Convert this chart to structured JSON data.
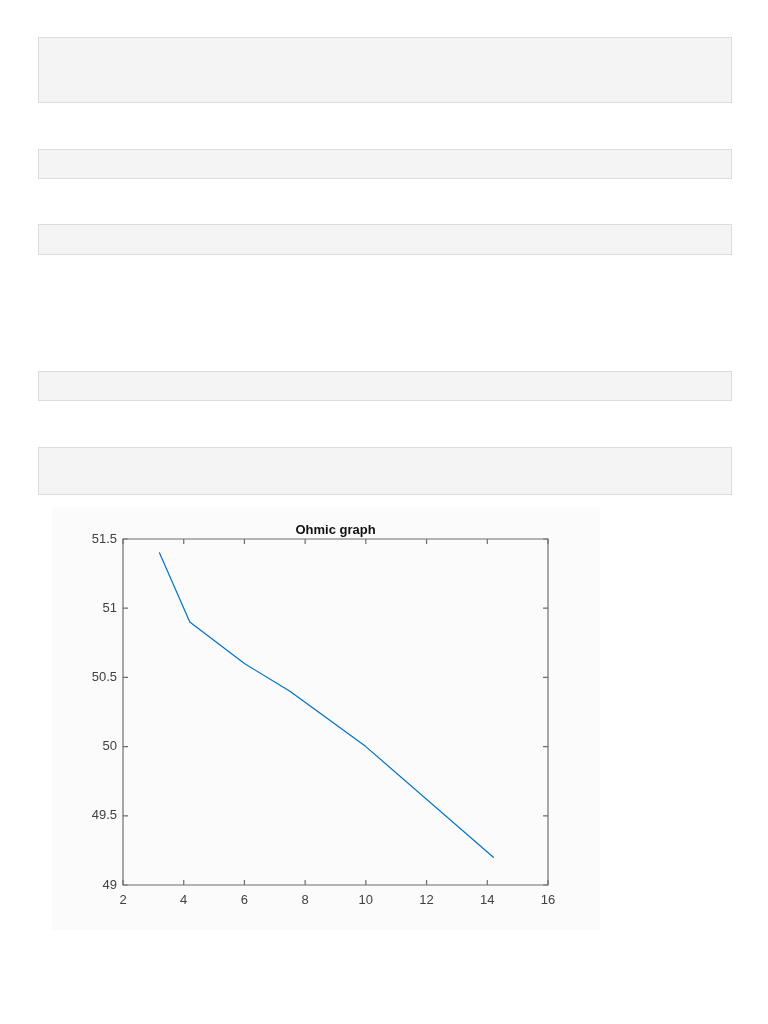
{
  "chart_data": {
    "type": "line",
    "title": "Ohmic graph",
    "x": [
      3.2,
      4.2,
      6,
      7.5,
      10,
      14.2
    ],
    "series": [
      {
        "color": "#0072bd",
        "values": [
          51.4,
          50.9,
          50.6,
          50.4,
          50.0,
          49.2
        ]
      }
    ],
    "xlim": [
      2,
      16
    ],
    "xticks": [
      2,
      4,
      6,
      8,
      10,
      12,
      14,
      16
    ],
    "ylim": [
      49,
      51.5
    ],
    "yticks": [
      49,
      49.5,
      50,
      50.5,
      51,
      51.5
    ],
    "marker": "none",
    "line_style": "solid"
  }
}
